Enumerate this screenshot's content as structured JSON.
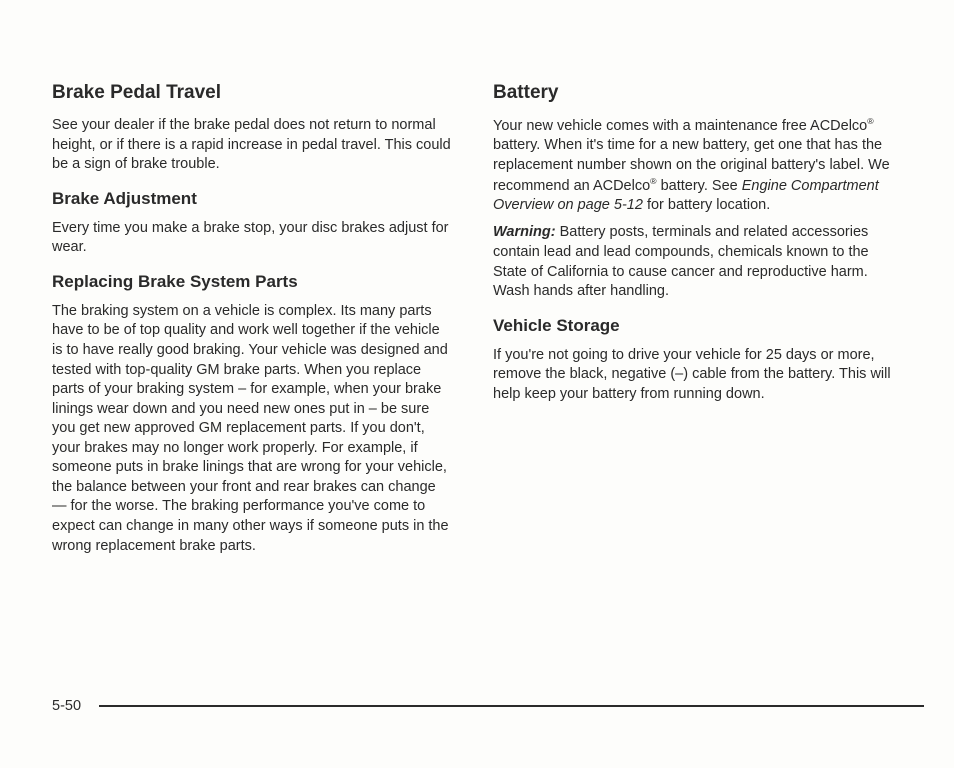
{
  "page": {
    "number": "5-50"
  },
  "left": {
    "heading1": "Brake Pedal Travel",
    "p1": "See your dealer if the brake pedal does not return to normal height, or if there is a rapid increase in pedal travel. This could be a sign of brake trouble.",
    "heading2": "Brake Adjustment",
    "p2": "Every time you make a brake stop, your disc brakes adjust for wear.",
    "heading3": "Replacing Brake System Parts",
    "p3": "The braking system on a vehicle is complex. Its many parts have to be of top quality and work well together if the vehicle is to have really good braking. Your vehicle was designed and tested with top-quality GM brake parts. When you replace parts of your braking system – for example, when your brake linings wear down and you need new ones put in – be sure you get new approved GM replacement parts. If you don't, your brakes may no longer work properly. For example, if someone puts in brake linings that are wrong for your vehicle, the balance between your front and rear brakes can change — for the worse. The braking performance you've come to expect can change in many other ways if someone puts in the wrong replacement brake parts."
  },
  "right": {
    "heading1": "Battery",
    "p1a": "Your new vehicle comes with a maintenance free ACDelco",
    "p1b": " battery. When it's time for a new battery, get one that has the replacement number shown on the original battery's label. We recommend an ACDelco",
    "p1c": " battery. See ",
    "p1_ref": "Engine Compartment Overview on page 5-12",
    "p1d": " for battery location.",
    "warn_label": "Warning:",
    "warn_text": "  Battery posts, terminals and related accessories contain lead and lead compounds, chemicals known to the State of California to cause cancer and reproductive harm. Wash hands after handling.",
    "heading2": "Vehicle Storage",
    "p2": "If you're not going to drive your vehicle for 25 days or more, remove the black, negative (–) cable from the battery. This will help keep your battery from running down."
  }
}
